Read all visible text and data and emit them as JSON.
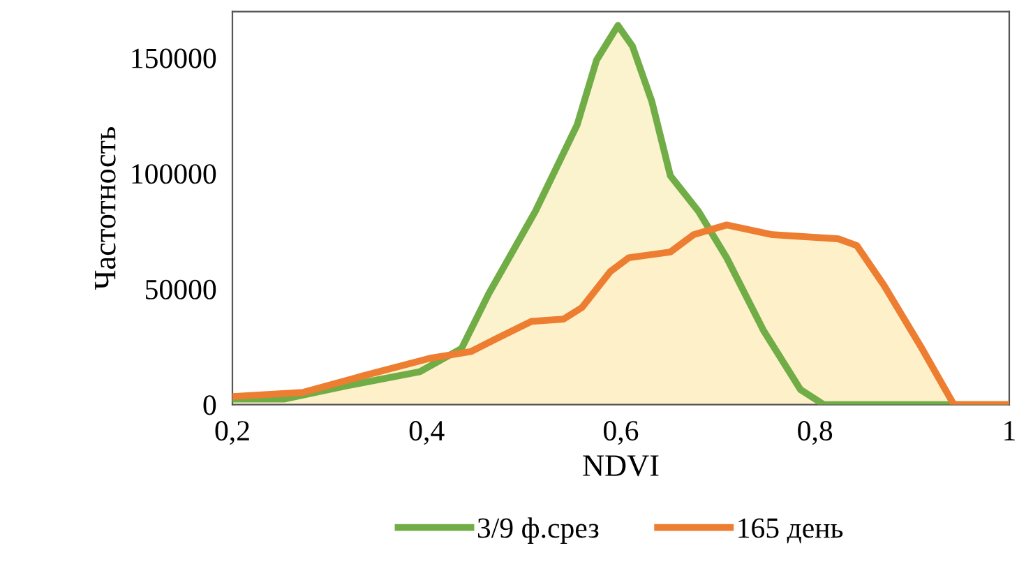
{
  "chart_data": {
    "type": "area",
    "xlabel": "NDVI",
    "ylabel": "Частотность",
    "xlim": [
      0.2,
      1
    ],
    "xticks": [
      {
        "value": 0.2,
        "label": "0,2"
      },
      {
        "value": 0.4,
        "label": "0,4"
      },
      {
        "value": 0.6,
        "label": "0,6"
      },
      {
        "value": 0.8,
        "label": "0,8"
      },
      {
        "value": 1,
        "label": "1"
      }
    ],
    "ylim": [
      0,
      170000
    ],
    "yticks": [
      0,
      50000,
      100000,
      150000
    ],
    "grid": false,
    "legend": "bottom",
    "series": [
      {
        "name": "3/9 ф.срез",
        "color": "#70ad47",
        "x": [
          0.2,
          0.253,
          0.32,
          0.393,
          0.436,
          0.464,
          0.512,
          0.555,
          0.575,
          0.597,
          0.612,
          0.632,
          0.651,
          0.68,
          0.709,
          0.747,
          0.785,
          0.809,
          0.9,
          1
        ],
        "values": [
          2400,
          2400,
          8300,
          14200,
          24300,
          48000,
          83600,
          121000,
          149000,
          164000,
          155000,
          131000,
          99000,
          83600,
          63500,
          32000,
          6500,
          0,
          0,
          0
        ]
      },
      {
        "name": "165 день",
        "color": "#ed7d31",
        "x": [
          0.2,
          0.273,
          0.335,
          0.403,
          0.446,
          0.474,
          0.508,
          0.541,
          0.56,
          0.589,
          0.608,
          0.651,
          0.675,
          0.709,
          0.756,
          0.824,
          0.843,
          0.871,
          0.91,
          0.943,
          1
        ],
        "values": [
          3500,
          5300,
          12500,
          20000,
          23000,
          29000,
          36000,
          37000,
          42000,
          57500,
          63500,
          66000,
          73500,
          77700,
          73500,
          71700,
          68800,
          51600,
          24300,
          0,
          0
        ]
      }
    ]
  }
}
